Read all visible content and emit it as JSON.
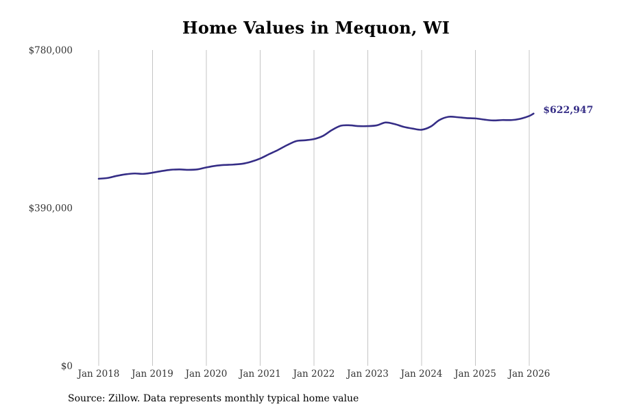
{
  "chart_data": {
    "type": "line",
    "title": "Home Values in Mequon, WI",
    "xlabel": "",
    "ylabel": "",
    "ylim": [
      0,
      780000
    ],
    "y_ticks": [
      {
        "value": 0,
        "label": "$0"
      },
      {
        "value": 390000,
        "label": "$390,000"
      },
      {
        "value": 780000,
        "label": "$780,000"
      }
    ],
    "x_ticks": [
      {
        "value": 2018.0,
        "label": "Jan 2018"
      },
      {
        "value": 2019.0,
        "label": "Jan 2019"
      },
      {
        "value": 2020.0,
        "label": "Jan 2020"
      },
      {
        "value": 2021.0,
        "label": "Jan 2021"
      },
      {
        "value": 2022.0,
        "label": "Jan 2022"
      },
      {
        "value": 2023.0,
        "label": "Jan 2023"
      },
      {
        "value": 2024.0,
        "label": "Jan 2024"
      },
      {
        "value": 2025.0,
        "label": "Jan 2025"
      },
      {
        "value": 2026.0,
        "label": "Jan 2026"
      }
    ],
    "xlim": [
      2017.85,
      2026.8
    ],
    "vertical_grid": true,
    "series": [
      {
        "name": "Typical home value",
        "color": "#352d86",
        "end_label": "$622,947",
        "x": [
          2018.0,
          2018.17,
          2018.33,
          2018.5,
          2018.67,
          2018.83,
          2019.0,
          2019.17,
          2019.33,
          2019.5,
          2019.67,
          2019.83,
          2020.0,
          2020.17,
          2020.33,
          2020.5,
          2020.67,
          2020.83,
          2021.0,
          2021.17,
          2021.33,
          2021.5,
          2021.67,
          2021.83,
          2022.0,
          2022.17,
          2022.33,
          2022.5,
          2022.67,
          2022.83,
          2023.0,
          2023.17,
          2023.33,
          2023.5,
          2023.67,
          2023.83,
          2024.0,
          2024.17,
          2024.33,
          2024.5,
          2024.67,
          2024.83,
          2025.0,
          2025.17,
          2025.33,
          2025.5,
          2025.67,
          2025.83,
          2026.0,
          2026.08
        ],
        "values": [
          462000,
          464000,
          469000,
          473000,
          475000,
          474000,
          477000,
          481000,
          484000,
          485000,
          484000,
          485000,
          490000,
          494000,
          496000,
          497000,
          499000,
          504000,
          512000,
          523000,
          533000,
          545000,
          555000,
          557000,
          560000,
          568000,
          582000,
          593000,
          594000,
          592000,
          592000,
          594000,
          601000,
          597000,
          590000,
          586000,
          583000,
          591000,
          607000,
          615000,
          614000,
          612000,
          611000,
          608000,
          606000,
          607000,
          607000,
          610000,
          617000,
          622947
        ]
      }
    ]
  },
  "source_note": "Source: Zillow. Data represents monthly typical home value"
}
